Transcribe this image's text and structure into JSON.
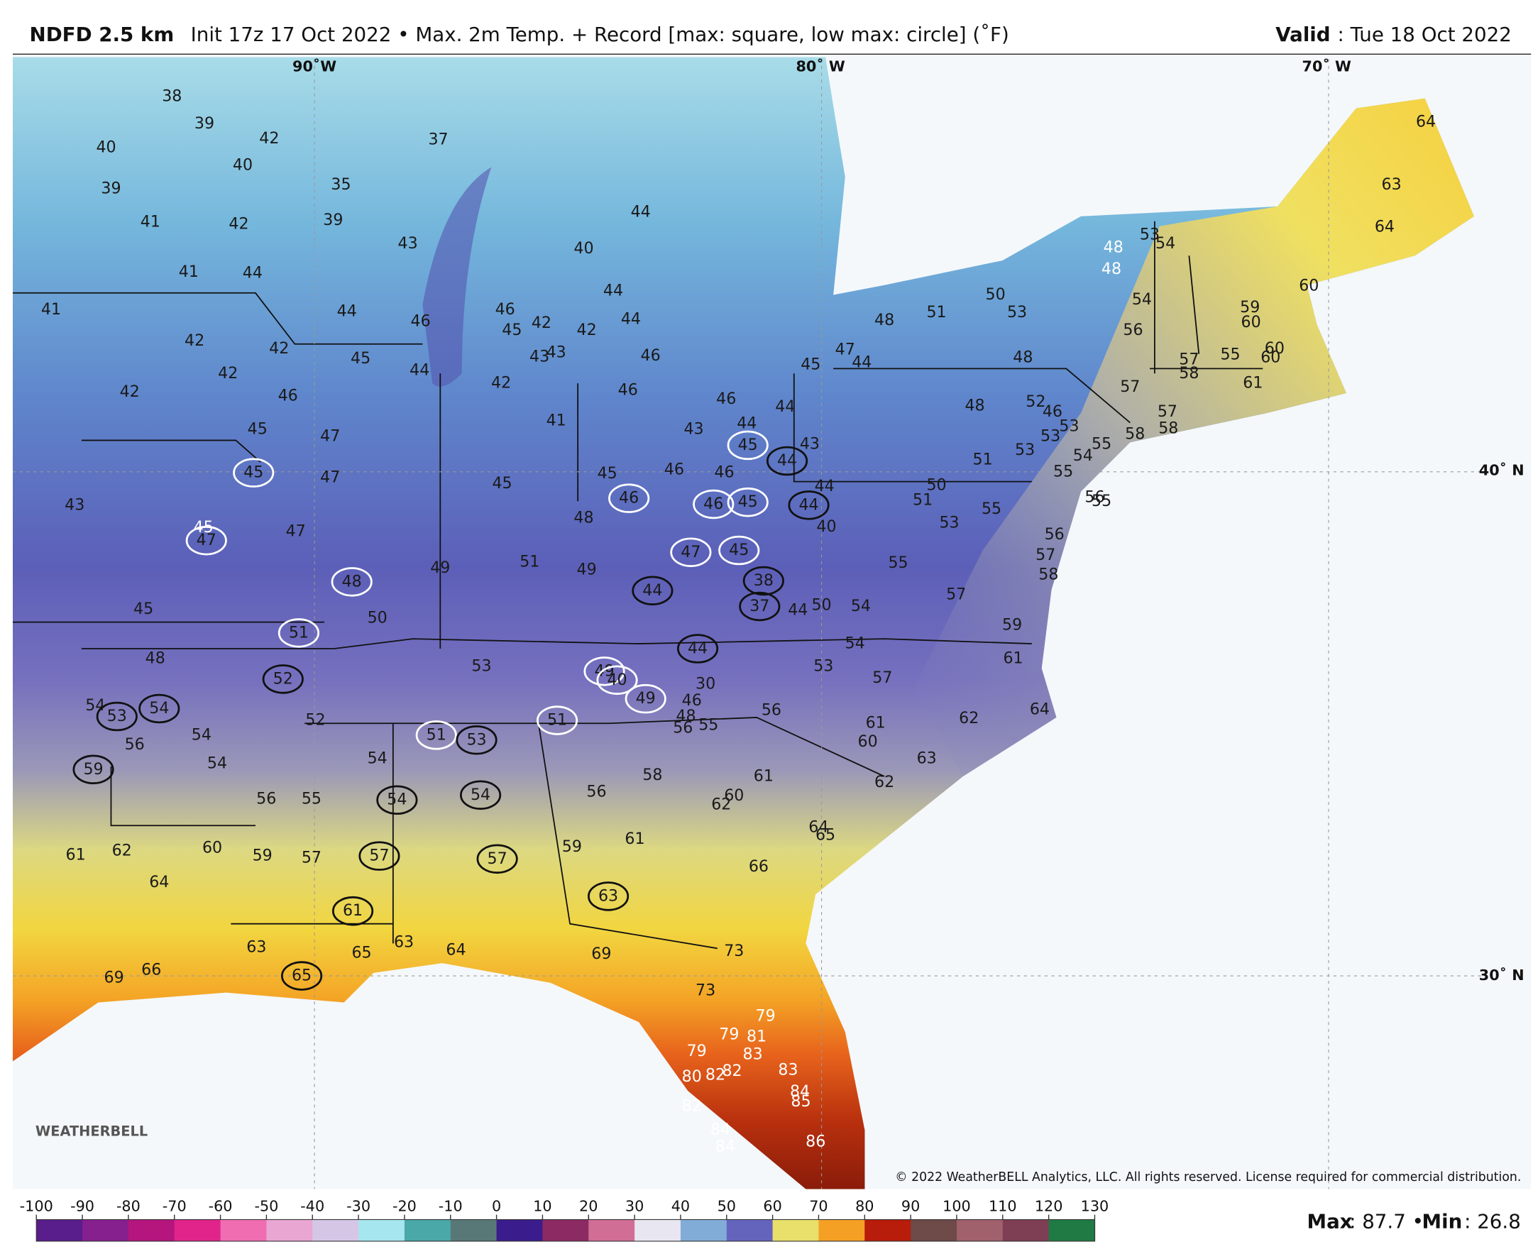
{
  "header": {
    "product": "NDFD 2.5 km",
    "description": "Init 17z 17 Oct 2022 • Max. 2m Temp. + Record [max: square, low max: circle] (˚F)",
    "valid_label": "Valid",
    "valid_date": ": Tue 18 Oct 2022"
  },
  "graticule": [
    "90˚W",
    "80˚ W",
    "70˚ W",
    "40˚ N",
    "30˚ N"
  ],
  "temperature_labels": [
    38,
    39,
    40,
    42,
    40,
    39,
    35,
    37,
    41,
    42,
    39,
    43,
    44,
    40,
    41,
    44,
    41,
    44,
    46,
    46,
    45,
    42,
    42,
    44,
    44,
    42,
    42,
    45,
    44,
    43,
    43,
    46,
    42,
    47,
    44,
    45,
    42,
    42,
    46,
    46,
    46,
    44,
    41,
    43,
    44,
    45,
    47,
    43,
    47,
    45,
    45,
    46,
    46,
    44,
    40,
    43,
    48,
    47,
    49,
    51,
    49,
    50,
    45,
    50,
    54,
    44,
    48,
    53,
    53,
    54,
    57,
    30,
    46,
    48,
    56,
    55,
    56,
    54,
    56,
    54,
    54,
    52,
    54,
    56,
    55,
    56,
    58,
    61,
    60,
    62,
    61,
    60,
    63,
    62,
    61,
    62,
    60,
    59,
    57,
    64,
    59,
    61,
    64,
    65,
    66,
    63,
    65,
    63,
    64,
    69,
    73,
    69,
    66,
    73,
    50,
    51,
    53,
    48,
    48,
    57,
    48,
    52,
    46,
    53,
    53,
    51,
    53,
    50,
    51,
    53,
    55,
    54,
    55,
    55,
    58,
    57,
    58,
    56,
    55,
    56,
    57,
    58,
    55,
    57,
    59,
    61,
    62,
    64,
    56,
    54,
    53,
    54,
    55,
    57,
    58,
    59,
    60,
    60,
    60,
    60,
    61,
    64,
    63,
    64
  ],
  "white_labels": [
    48,
    48,
    45,
    79,
    79,
    81,
    83,
    79,
    80,
    82,
    82,
    83,
    84,
    85,
    82,
    84,
    84,
    86
  ],
  "white_circled": [
    45,
    47,
    48,
    51,
    46,
    46,
    45,
    45,
    47,
    45,
    51,
    51,
    49,
    40,
    49
  ],
  "black_circled": [
    44,
    44,
    44,
    38,
    37,
    44,
    52,
    53,
    54,
    59,
    53,
    54,
    54,
    57,
    57,
    61,
    63,
    65
  ],
  "colorbar": {
    "ticks": [
      -100,
      -90,
      -80,
      -70,
      -60,
      -50,
      -40,
      -30,
      -20,
      -10,
      0,
      10,
      20,
      30,
      40,
      50,
      60,
      70,
      80,
      90,
      100,
      110,
      120,
      130
    ],
    "colors": [
      "#5a1d8c",
      "#86208e",
      "#b4167e",
      "#e0248a",
      "#f06db2",
      "#eaa6d2",
      "#d6c6e6",
      "#a6e6ee",
      "#4aa8a8",
      "#587878",
      "#3a1c8c",
      "#8c2a64",
      "#d06e96",
      "#e8e6f0",
      "#82acd8",
      "#6464bc",
      "#e8e06a",
      "#f4a024",
      "#b81c0a",
      "#6e4a48",
      "#a0606c",
      "#7e3e54",
      "#1f7a44"
    ]
  },
  "footer": {
    "logo": "WEATHERBELL",
    "copyright": "© 2022 WeatherBELL Analytics, LLC. All rights reserved. License required for commercial distribution.",
    "stats": [
      {
        "label": "Max",
        "text": ": 87.7 •"
      },
      {
        "label": "Min",
        "text": ": 26.8"
      }
    ]
  }
}
